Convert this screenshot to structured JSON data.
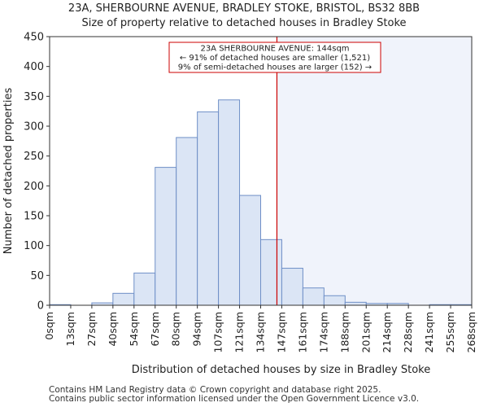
{
  "title_line1": "23A, SHERBOURNE AVENUE, BRADLEY STOKE, BRISTOL, BS32 8BB",
  "title_line2": "Size of property relative to detached houses in Bradley Stoke",
  "footer_line1": "Contains HM Land Registry data © Crown copyright and database right 2025.",
  "footer_line2": "Contains public sector information licensed under the Open Government Licence v3.0.",
  "colors": {
    "bar_fill": "#dbe5f5",
    "bar_edge": "#6f8fc7",
    "marker_line": "#cc0000",
    "highlight_region": "#f0f3fb",
    "annotation_border": "#cc0000"
  },
  "chart_data": {
    "type": "bar",
    "xlabel": "Distribution of detached houses by size in Bradley Stoke",
    "ylabel": "Number of detached properties",
    "ylim": [
      0,
      450
    ],
    "yticks": [
      0,
      50,
      100,
      150,
      200,
      250,
      300,
      350,
      400,
      450
    ],
    "bin_edges": [
      0,
      13,
      27,
      40,
      54,
      67,
      80,
      94,
      107,
      121,
      134,
      147,
      161,
      174,
      188,
      201,
      214,
      228,
      241,
      255,
      268
    ],
    "tick_labels": [
      "0sqm",
      "13sqm",
      "27sqm",
      "40sqm",
      "54sqm",
      "67sqm",
      "80sqm",
      "94sqm",
      "107sqm",
      "121sqm",
      "134sqm",
      "147sqm",
      "161sqm",
      "174sqm",
      "188sqm",
      "201sqm",
      "214sqm",
      "228sqm",
      "241sqm",
      "255sqm",
      "268sqm"
    ],
    "values": [
      1,
      0,
      4,
      20,
      54,
      231,
      281,
      324,
      344,
      184,
      110,
      62,
      29,
      16,
      5,
      3,
      3,
      0,
      1,
      1
    ],
    "grid": false,
    "marker": {
      "value": 144
    },
    "annotation": {
      "line1": "23A SHERBOURNE AVENUE: 144sqm",
      "line2": "← 91% of detached houses are smaller (1,521)",
      "line3": "9% of semi-detached houses are larger (152) →"
    }
  }
}
